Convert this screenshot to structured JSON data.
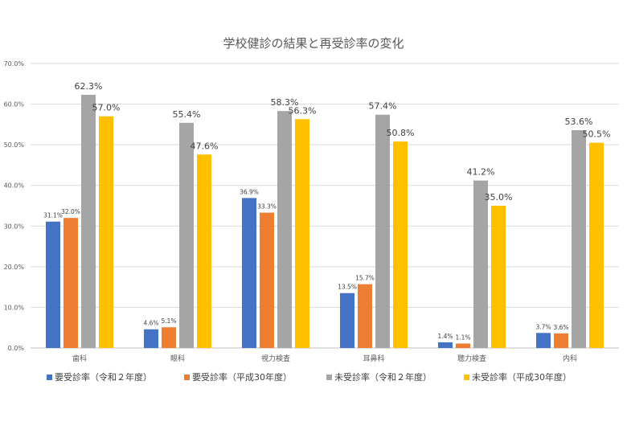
{
  "chart_data": {
    "type": "bar",
    "title": "学校健診の結果と再受診率の変化",
    "categories": [
      "歯科",
      "眼科",
      "視力検査",
      "耳鼻科",
      "聴力検査",
      "内科"
    ],
    "ylim": [
      0,
      70
    ],
    "yticks": [
      "0.0%",
      "10.0%",
      "20.0%",
      "30.0%",
      "40.0%",
      "50.0%",
      "60.0%",
      "70.0%"
    ],
    "grid": true,
    "legend_position": "bottom",
    "series": [
      {
        "name": "要受診率（令和２年度）",
        "color": "#4472C4",
        "values": [
          31.1,
          4.6,
          36.9,
          13.5,
          1.4,
          3.7
        ],
        "labels": [
          "31.1%",
          "4.6%",
          "36.9%",
          "13.5%",
          "1.4%",
          "3.7%"
        ]
      },
      {
        "name": "要受診率（平成30年度）",
        "color": "#ED7D31",
        "values": [
          32.0,
          5.1,
          33.3,
          15.7,
          1.1,
          3.6
        ],
        "labels": [
          "32.0%",
          "5.1%",
          "33.3%",
          "15.7%",
          "1.1%",
          "3.6%"
        ]
      },
      {
        "name": "未受診率（令和２年度）",
        "color": "#A5A5A5",
        "values": [
          62.3,
          55.4,
          58.3,
          57.4,
          41.2,
          53.6
        ],
        "labels": [
          "62.3%",
          "55.4%",
          "58.3%",
          "57.4%",
          "41.2%",
          "53.6%"
        ]
      },
      {
        "name": "未受診率（平成30年度）",
        "color": "#FFC000",
        "values": [
          57.0,
          47.6,
          56.3,
          50.8,
          35.0,
          50.5
        ],
        "labels": [
          "57.0%",
          "47.6%",
          "56.3%",
          "50.8%",
          "35.0%",
          "50.5%"
        ]
      }
    ]
  }
}
